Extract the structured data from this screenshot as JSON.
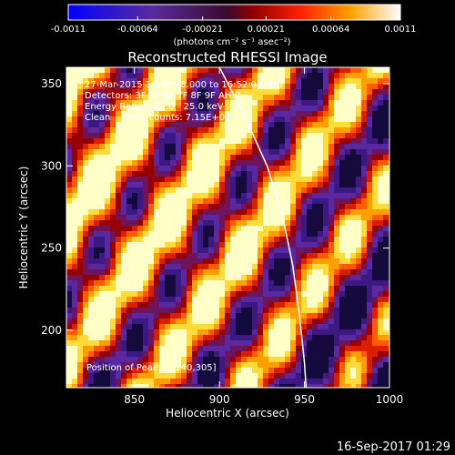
{
  "colorbar": {
    "tick_labels": [
      "-0.0011",
      "-0.00064",
      "-0.00021",
      "0.00021",
      "0.00064",
      "0.0011"
    ],
    "tick_values": [
      -0.0011,
      -0.00064,
      -0.00021,
      0.00021,
      0.00064,
      0.0011
    ],
    "range": [
      -0.0011,
      0.0011
    ],
    "unit_label": "(photons cm⁻² s⁻¹ asec⁻²)"
  },
  "footer": {
    "timestamp": "16-Sep-2017 01:29"
  },
  "chart_data": {
    "type": "heatmap",
    "title": "Reconstructed RHESSI Image",
    "xlabel": "Heliocentric X (arcsec)",
    "ylabel": "Heliocentric Y (arcsec)",
    "xlim": [
      810,
      1000
    ],
    "ylim": [
      165,
      360
    ],
    "x_ticks": [
      850,
      900,
      950,
      1000
    ],
    "y_ticks": [
      200,
      250,
      300,
      350
    ],
    "x_tick_labels": [
      "850",
      "900",
      "950",
      "1000"
    ],
    "y_tick_labels": [
      "200",
      "250",
      "300",
      "350"
    ],
    "annotations": [
      "27-Mar-2015 16:42:08.000 to 16:52:08.000",
      "Detectors: 3F 5F 6F 7F 8F 9F AH 0",
      "Energy Range: 12.0 - 25.0 keV",
      "Clean     Total counts: 7.15E+04"
    ],
    "peak_label": "Position of Peak = [940,305]",
    "peak_position": [
      940,
      305
    ],
    "limb_curve": [
      [
        900,
        360
      ],
      [
        915,
        330
      ],
      [
        928,
        300
      ],
      [
        937,
        270
      ],
      [
        943,
        240
      ],
      [
        947,
        210
      ],
      [
        950,
        180
      ],
      [
        951,
        165
      ]
    ],
    "stripe_angle_deg": 35,
    "colormap": "blue-purple-red-orange-yellow-white"
  }
}
